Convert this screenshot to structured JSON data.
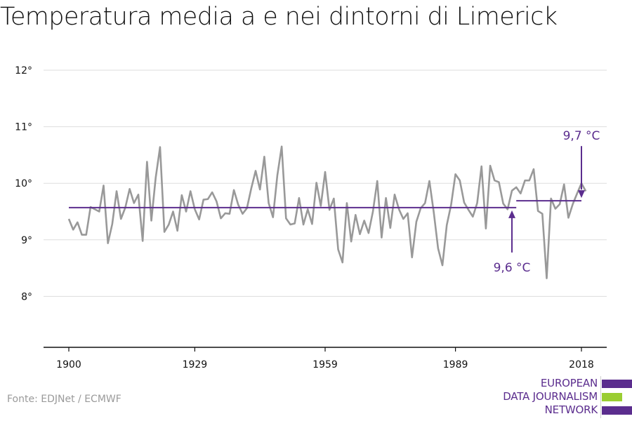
{
  "title": "Temperatura media a e nei dintorni di Limerick",
  "source": "Fonte: EDJNet / ECMWF",
  "logo": {
    "lines": [
      "EUROPEAN",
      "DATA JOURNALISM",
      "NETWORK"
    ]
  },
  "colors": {
    "series": "#999999",
    "mean": "#5b2d8e",
    "accent": "#9acd32",
    "grid": "#dddddd",
    "axis": "#111111"
  },
  "chart_data": {
    "type": "line",
    "title": "Temperatura media a e nei dintorni di Limerick",
    "xlabel": "",
    "ylabel": "",
    "xlim": [
      1900,
      2018
    ],
    "ylim": [
      7,
      12
    ],
    "grid": true,
    "x_ticks": [
      1900,
      1929,
      1959,
      1989,
      2018
    ],
    "x_tick_labels": [
      "1900",
      "1929",
      "1959",
      "1989",
      "2018"
    ],
    "y_ticks": [
      8,
      9,
      10,
      11,
      12
    ],
    "y_tick_labels": [
      "8°",
      "9°",
      "10°",
      "11°",
      "12°"
    ],
    "series": [
      {
        "x_start": 1900,
        "values": [
          9.37,
          9.18,
          9.31,
          9.09,
          9.09,
          9.58,
          9.54,
          9.5,
          9.96,
          8.94,
          9.28,
          9.86,
          9.37,
          9.57,
          9.9,
          9.65,
          9.8,
          8.98,
          10.38,
          9.34,
          10.1,
          10.64,
          9.14,
          9.27,
          9.5,
          9.16,
          9.79,
          9.5,
          9.86,
          9.54,
          9.36,
          9.71,
          9.72,
          9.84,
          9.68,
          9.38,
          9.47,
          9.46,
          9.88,
          9.62,
          9.46,
          9.56,
          9.91,
          10.22,
          9.89,
          10.47,
          9.65,
          9.4,
          10.14,
          10.65,
          9.38,
          9.27,
          9.29,
          9.74,
          9.27,
          9.54,
          9.28,
          10.01,
          9.6,
          10.2,
          9.53,
          9.73,
          8.83,
          8.6,
          9.65,
          8.97,
          9.44,
          9.1,
          9.34,
          9.12,
          9.5,
          10.04,
          9.04,
          9.74,
          9.21,
          9.8,
          9.54,
          9.37,
          9.47,
          8.69,
          9.32,
          9.56,
          9.65,
          10.04,
          9.49,
          8.85,
          8.55,
          9.26,
          9.62,
          10.16,
          10.05,
          9.66,
          9.53,
          9.41,
          9.65,
          10.3,
          9.2,
          10.31,
          10.05,
          10.02,
          9.64,
          9.54,
          9.87,
          9.93,
          9.82,
          10.05,
          10.05,
          10.25,
          9.51,
          9.46,
          8.32,
          9.73,
          9.55,
          9.63,
          9.98,
          9.39,
          9.63,
          9.82,
          10.0,
          9.86
        ]
      }
    ],
    "reference_lines": [
      {
        "value": 9.57,
        "from": 1900,
        "to": 2003
      },
      {
        "value": 9.69,
        "from": 2003,
        "to": 2018
      }
    ],
    "annotations": [
      {
        "text": "9,6 °C",
        "x": 2002,
        "y": 9.57,
        "direction": "below"
      },
      {
        "text": "9,7 °C",
        "x": 2018,
        "y": 9.69,
        "direction": "above"
      }
    ]
  }
}
